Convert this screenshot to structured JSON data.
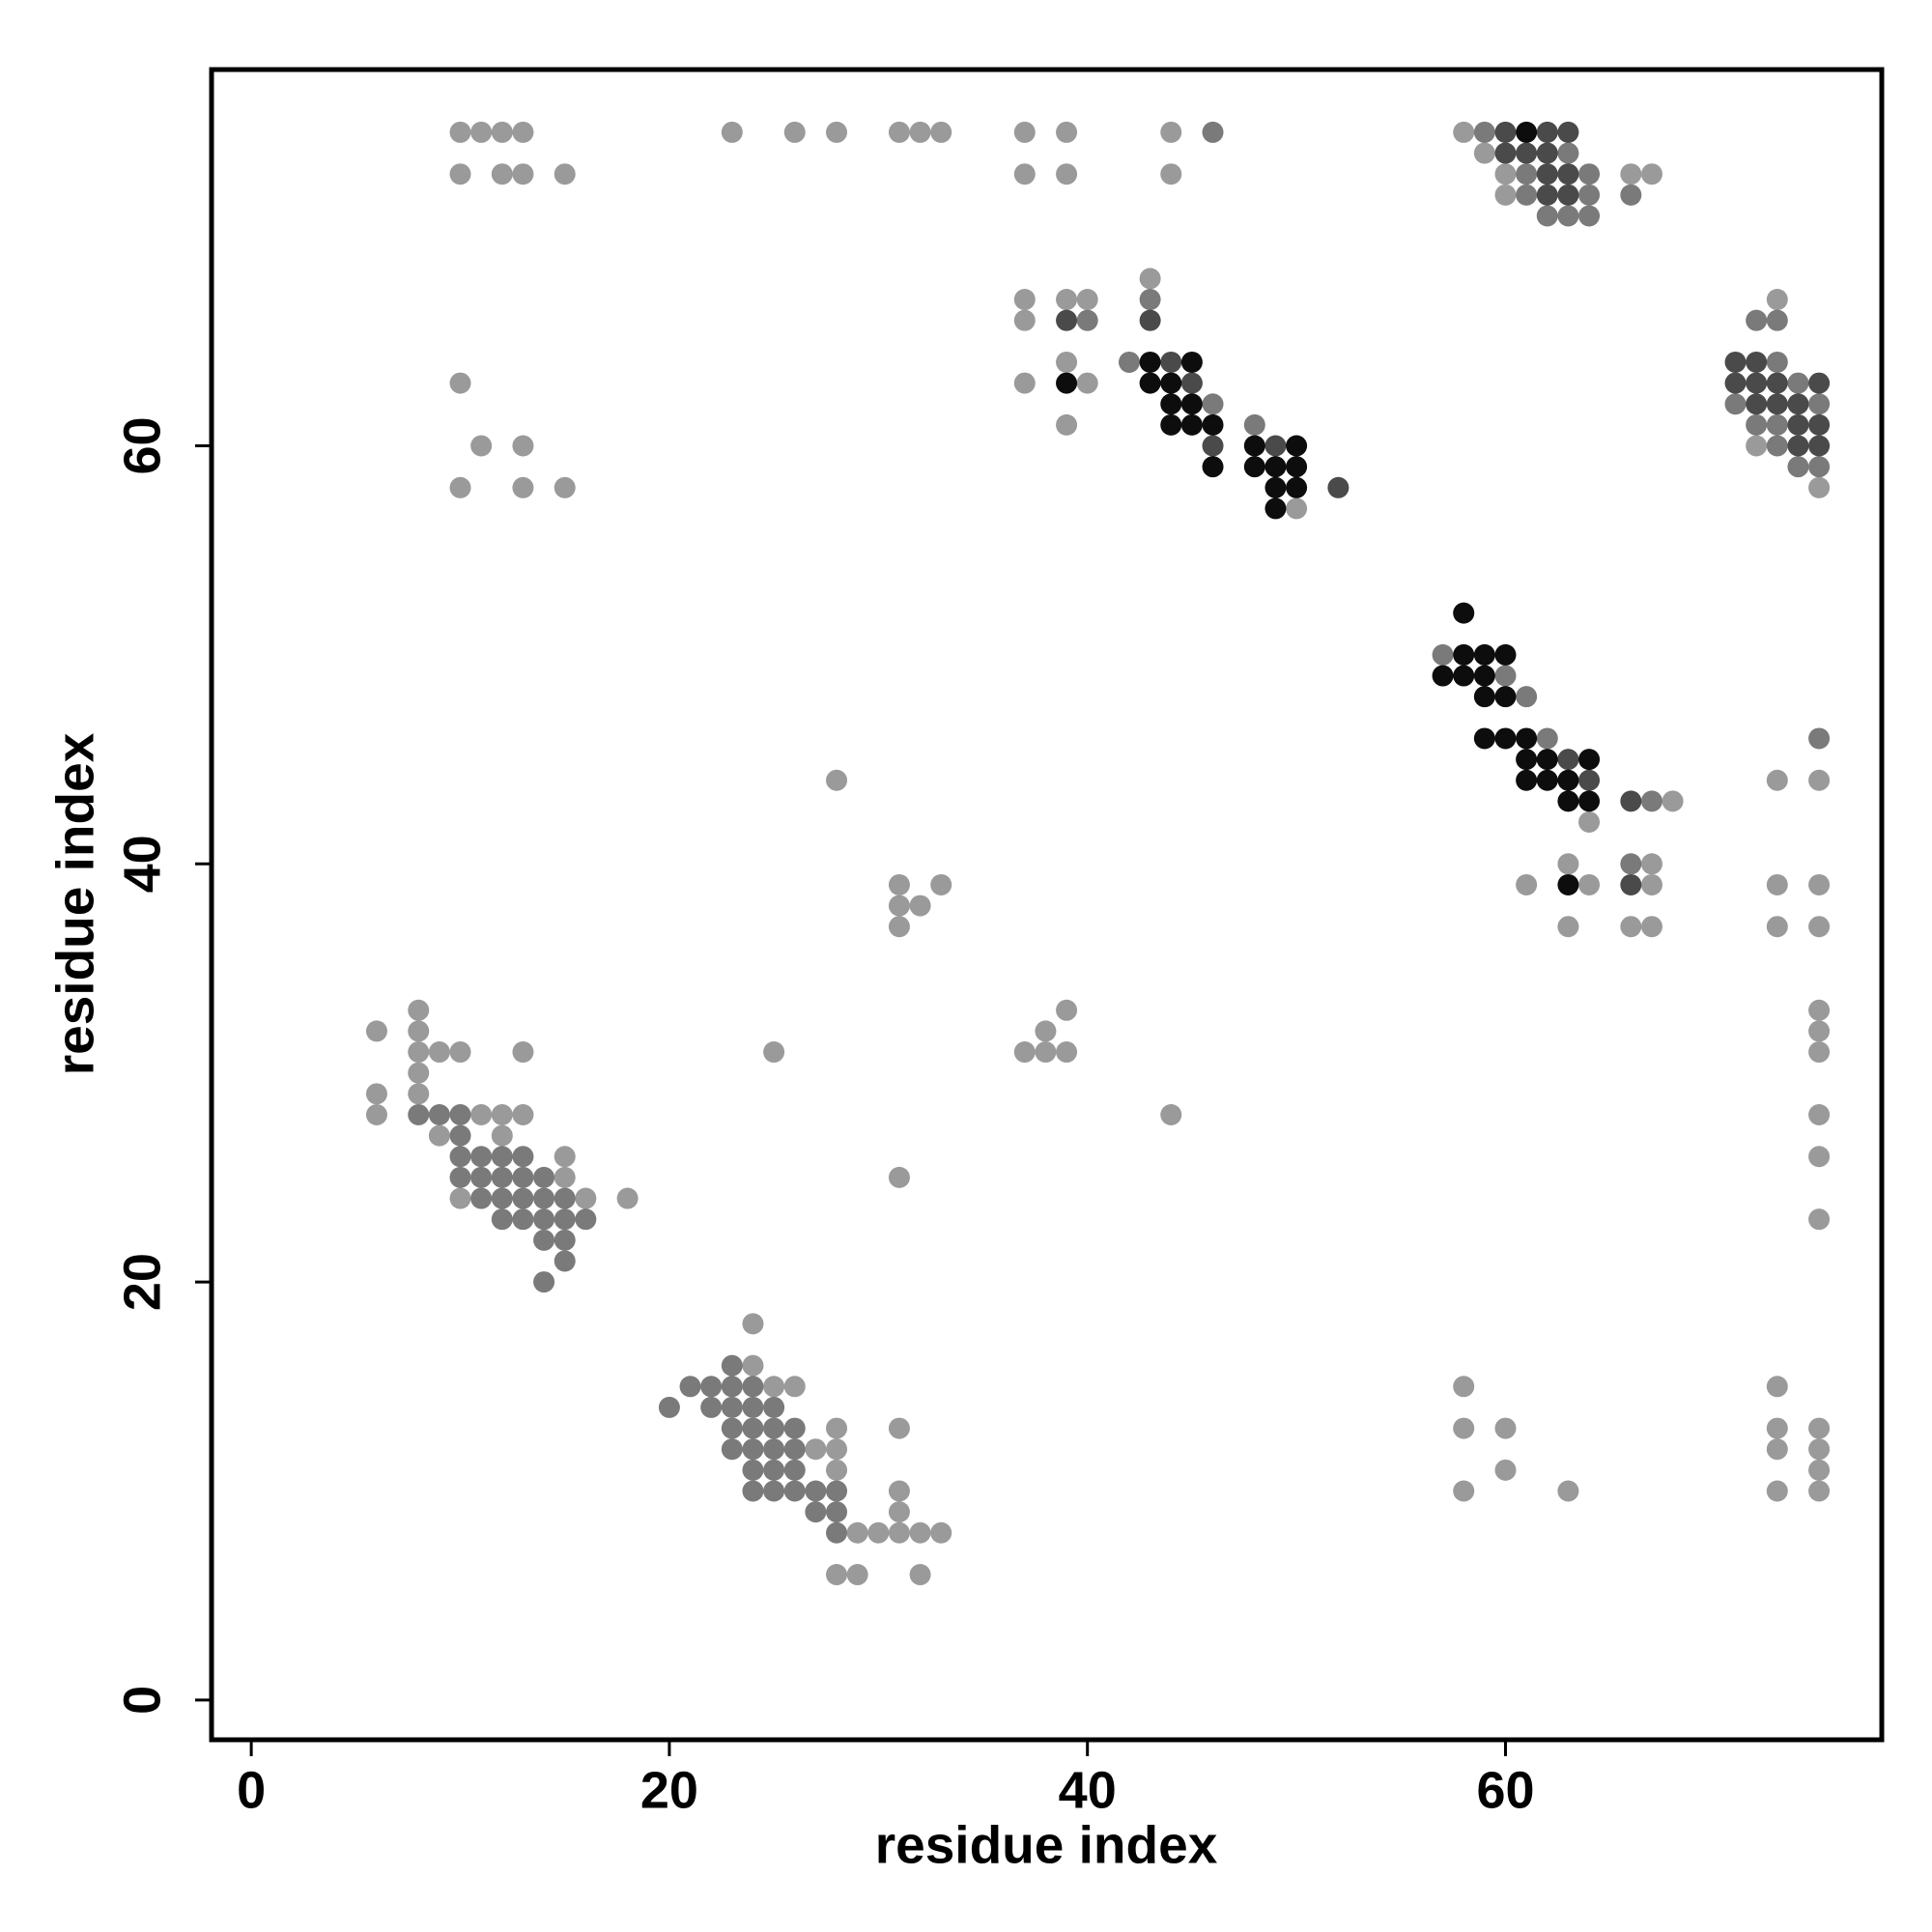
{
  "chart_data": {
    "type": "scatter",
    "xlabel": "residue index",
    "ylabel": "residue index",
    "xlim": [
      -1.9,
      78
    ],
    "ylim": [
      -1.9,
      78
    ],
    "xticks": [
      0,
      20,
      40,
      60
    ],
    "yticks": [
      0,
      20,
      40,
      60
    ],
    "series": [
      {
        "color": "#9a9a9a",
        "x": [
          10,
          11,
          12,
          13,
          23,
          26,
          28,
          31,
          32,
          33,
          37,
          39,
          44,
          58,
          10,
          12,
          13,
          15,
          59,
          37,
          39,
          44,
          60,
          66,
          67,
          60,
          43,
          37,
          39,
          40,
          73,
          37,
          39,
          10,
          37,
          40,
          39,
          72,
          11,
          13,
          10,
          13,
          15,
          75,
          50,
          68,
          64,
          63,
          67,
          28,
          73,
          75,
          31,
          33,
          61,
          64,
          67,
          73,
          75,
          31,
          32,
          31,
          63,
          66,
          67,
          73,
          75,
          8,
          39,
          75,
          6,
          8,
          38,
          75,
          8,
          9,
          10,
          13,
          25,
          37,
          38,
          39,
          75,
          8,
          6,
          8,
          6,
          11,
          12,
          13,
          44,
          75,
          9,
          12,
          15,
          75,
          15,
          31,
          10,
          16,
          18,
          75,
          24,
          24,
          25,
          26,
          58,
          73,
          28,
          31,
          58,
          60,
          73,
          75,
          27,
          28,
          73,
          75,
          28,
          60,
          75,
          31,
          58,
          63,
          73,
          75,
          31,
          29,
          30,
          31,
          32,
          33,
          28,
          29,
          32
        ],
        "values": [
          75,
          75,
          75,
          75,
          75,
          75,
          75,
          75,
          75,
          75,
          75,
          75,
          75,
          75,
          73,
          73,
          73,
          73,
          74,
          73,
          73,
          73,
          73,
          73,
          73,
          72,
          68,
          67,
          67,
          67,
          67,
          66,
          64,
          63,
          63,
          63,
          61,
          60,
          60,
          60,
          58,
          58,
          58,
          58,
          57,
          43,
          42,
          40,
          40,
          44,
          44,
          44,
          39,
          39,
          39,
          39,
          39,
          39,
          39,
          38,
          38,
          37,
          37,
          37,
          37,
          37,
          37,
          33,
          33,
          33,
          32,
          32,
          32,
          32,
          31,
          31,
          31,
          31,
          31,
          31,
          31,
          31,
          31,
          30,
          29,
          29,
          28,
          28,
          28,
          28,
          28,
          28,
          27,
          27,
          26,
          26,
          25,
          25,
          24,
          24,
          24,
          23,
          18,
          16,
          15,
          15,
          15,
          15,
          13,
          13,
          13,
          13,
          13,
          13,
          12,
          12,
          12,
          12,
          11,
          11,
          11,
          10,
          10,
          10,
          10,
          10,
          9,
          8,
          8,
          8,
          8,
          8,
          6,
          6,
          6
        ]
      },
      {
        "color": "#7a7a7a",
        "x": [
          46,
          59,
          63,
          61,
          64,
          61,
          64,
          66,
          62,
          63,
          64,
          43,
          40,
          72,
          73,
          42,
          73,
          74,
          46,
          71,
          75,
          48,
          72,
          73,
          73,
          74,
          75,
          57,
          60,
          61,
          62,
          75,
          67,
          66,
          8,
          9,
          10,
          10,
          10,
          11,
          12,
          13,
          10,
          11,
          12,
          13,
          14,
          11,
          12,
          13,
          14,
          15,
          12,
          13,
          14,
          15,
          16,
          14,
          15,
          15,
          14,
          23,
          21,
          22,
          23,
          24,
          20,
          22,
          23,
          24,
          25,
          23,
          24,
          25,
          26,
          23,
          24,
          25,
          26,
          24,
          25,
          26,
          24,
          25,
          26,
          27,
          28,
          27,
          28,
          28
        ],
        "values": [
          75,
          75,
          74,
          73,
          73,
          72,
          72,
          72,
          71,
          71,
          71,
          67,
          66,
          66,
          66,
          64,
          64,
          63,
          62,
          62,
          62,
          61,
          61,
          61,
          60,
          59,
          59,
          50,
          49,
          48,
          46,
          46,
          43,
          40,
          28,
          28,
          28,
          27,
          26,
          26,
          26,
          26,
          25,
          25,
          25,
          25,
          25,
          24,
          24,
          24,
          24,
          24,
          23,
          23,
          23,
          23,
          23,
          22,
          22,
          21,
          20,
          16,
          15,
          15,
          15,
          15,
          14,
          14,
          14,
          14,
          14,
          13,
          13,
          13,
          13,
          12,
          12,
          12,
          12,
          11,
          11,
          11,
          10,
          10,
          10,
          10,
          10,
          9,
          9,
          8
        ]
      },
      {
        "color": "#4a4a4a",
        "x": [
          60,
          62,
          63,
          60,
          61,
          62,
          62,
          63,
          62,
          63,
          39,
          43,
          44,
          71,
          72,
          45,
          71,
          72,
          73,
          75,
          72,
          73,
          74,
          74,
          75,
          46,
          49,
          74,
          75,
          52,
          63,
          64,
          66,
          66
        ],
        "values": [
          75,
          75,
          75,
          74,
          74,
          74,
          73,
          73,
          72,
          72,
          66,
          66,
          64,
          64,
          64,
          63,
          63,
          63,
          63,
          63,
          62,
          62,
          62,
          61,
          61,
          60,
          60,
          60,
          60,
          58,
          45,
          44,
          43,
          39
        ]
      },
      {
        "color": "#0d0d0d",
        "x": [
          61,
          43,
          45,
          39,
          43,
          44,
          44,
          45,
          44,
          45,
          46,
          48,
          50,
          46,
          48,
          49,
          50,
          49,
          50,
          49,
          58,
          58,
          59,
          60,
          57,
          58,
          59,
          59,
          60,
          59,
          60,
          61,
          61,
          62,
          64,
          61,
          62,
          63,
          63,
          64,
          63
        ],
        "values": [
          75,
          64,
          64,
          63,
          63,
          63,
          62,
          62,
          61,
          61,
          61,
          60,
          60,
          59,
          59,
          59,
          59,
          58,
          58,
          57,
          52,
          50,
          50,
          50,
          49,
          49,
          49,
          48,
          48,
          46,
          46,
          46,
          45,
          45,
          45,
          44,
          44,
          44,
          43,
          43,
          39
        ]
      }
    ]
  }
}
